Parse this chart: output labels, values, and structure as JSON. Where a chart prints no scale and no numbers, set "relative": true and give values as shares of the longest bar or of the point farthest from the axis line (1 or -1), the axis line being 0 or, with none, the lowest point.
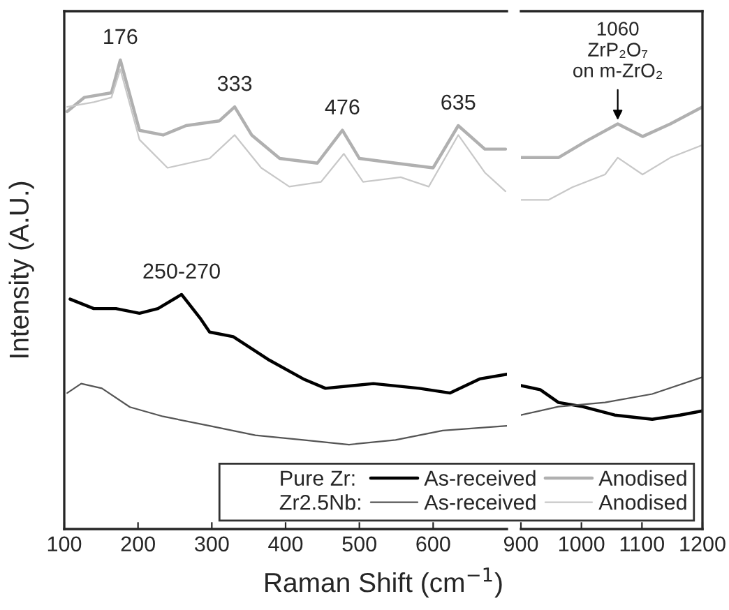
{
  "chart_data": [
    {
      "type": "line",
      "relative": true,
      "xlabel": "Raman Shift (cm$^{−1}$)",
      "ylabel": "Intensity (A.U.)",
      "xlim": [
        100,
        700
      ],
      "xticks": [
        100,
        200,
        300,
        400,
        500,
        600
      ],
      "tick_labels": "x",
      "legend": "bottom right",
      "grid": false,
      "annotations": [
        "Pure Zr:",
        "Zr2.5Nb:",
        {
          "text": "176",
          "x": 176,
          "y": 1.0
        },
        {
          "text": "333",
          "x": 331,
          "y": 0.9
        },
        {
          "text": "476",
          "x": 477,
          "y": 0.85
        },
        {
          "text": "635",
          "x": 634,
          "y": 0.86
        },
        {
          "text": "250-270",
          "x": 259,
          "y": 0.5
        }
      ],
      "series": [
        {
          "name": "As-received",
          "color": "#000000",
          "x": [
            108,
            140,
            170,
            202,
            227,
            259,
            284,
            297,
            329,
            378,
            424,
            454,
            519,
            581,
            623,
            663,
            700
          ],
          "values": [
            0.49,
            0.47,
            0.47,
            0.46,
            0.47,
            0.5,
            0.45,
            0.42,
            0.41,
            0.36,
            0.32,
            0.3,
            0.31,
            0.3,
            0.29,
            0.32,
            0.33
          ]
        },
        {
          "name": "As-received",
          "color": "#555555",
          "x": [
            104,
            123,
            151,
            189,
            234,
            297,
            359,
            424,
            486,
            549,
            613,
            700
          ],
          "values": [
            0.29,
            0.31,
            0.3,
            0.26,
            0.24,
            0.22,
            0.2,
            0.19,
            0.18,
            0.19,
            0.21,
            0.22
          ]
        },
        {
          "name": "Anodised",
          "color": "#b0b0b0",
          "x": [
            104,
            127,
            164,
            176,
            202,
            234,
            265,
            310,
            331,
            354,
            392,
            443,
            477,
            500,
            549,
            600,
            634,
            670,
            698
          ],
          "values": [
            0.89,
            0.92,
            0.93,
            1.0,
            0.85,
            0.84,
            0.86,
            0.87,
            0.9,
            0.84,
            0.79,
            0.78,
            0.85,
            0.79,
            0.78,
            0.77,
            0.86,
            0.81,
            0.81
          ]
        },
        {
          "name": "Anodised",
          "color": "#c8c8c8",
          "x": [
            104,
            140,
            164,
            176,
            202,
            240,
            297,
            331,
            367,
            405,
            448,
            479,
            505,
            556,
            594,
            634,
            670,
            698
          ],
          "values": [
            0.9,
            0.91,
            0.92,
            0.98,
            0.83,
            0.77,
            0.79,
            0.84,
            0.77,
            0.73,
            0.74,
            0.8,
            0.74,
            0.75,
            0.73,
            0.84,
            0.76,
            0.72
          ]
        }
      ]
    },
    {
      "type": "line",
      "relative": true,
      "xlim": [
        900,
        1200
      ],
      "xticks": [
        900,
        1000,
        1100,
        1200
      ],
      "tick_labels": "x",
      "grid": false,
      "annotations": [
        {
          "text": "1060\nZrP₂O₇\non m-ZrO₂",
          "x": 1060,
          "y": 0.96
        }
      ],
      "series": [
        {
          "color": "#000000",
          "x": [
            900,
            932,
            962,
            1002,
            1055,
            1117,
            1163,
            1200
          ],
          "values": [
            0.34,
            0.33,
            0.3,
            0.29,
            0.27,
            0.26,
            0.27,
            0.28
          ]
        },
        {
          "color": "#555555",
          "x": [
            900,
            962,
            1039,
            1117,
            1200
          ],
          "values": [
            0.27,
            0.29,
            0.3,
            0.32,
            0.36
          ]
        },
        {
          "color": "#b0b0b0",
          "x": [
            900,
            962,
            1009,
            1060,
            1101,
            1147,
            1200
          ],
          "values": [
            0.88,
            0.88,
            0.92,
            0.96,
            0.93,
            0.96,
            1.0
          ]
        },
        {
          "color": "#c8c8c8",
          "x": [
            900,
            946,
            985,
            1039,
            1060,
            1101,
            1147,
            1200
          ],
          "values": [
            0.78,
            0.78,
            0.81,
            0.84,
            0.88,
            0.84,
            0.88,
            0.91
          ]
        }
      ]
    }
  ]
}
